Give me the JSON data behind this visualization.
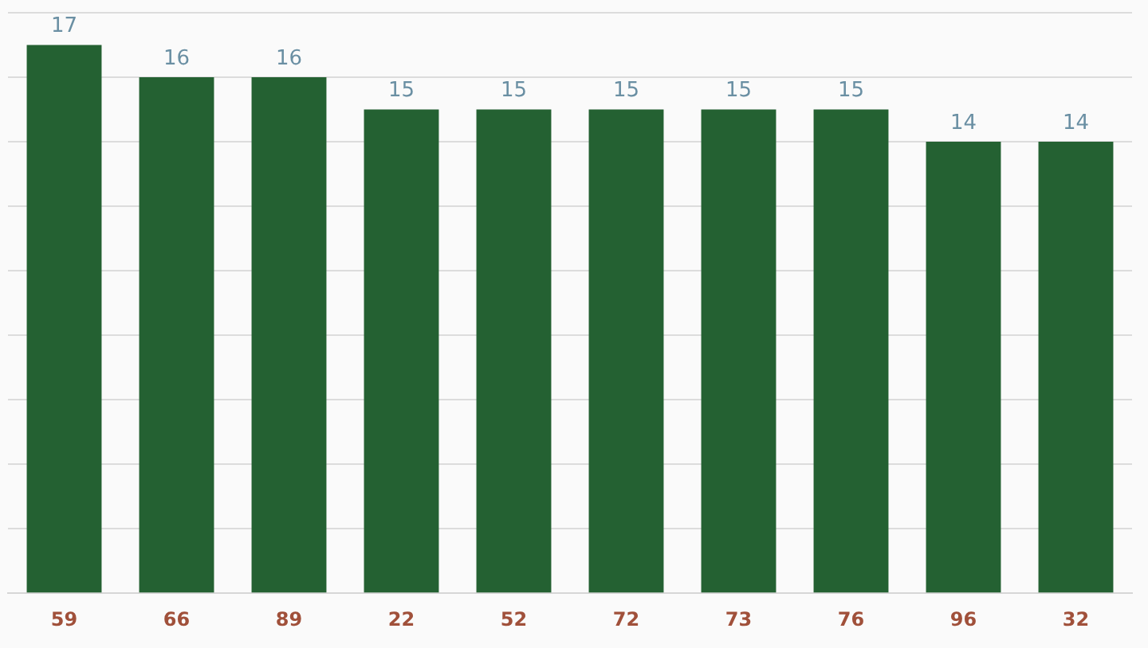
{
  "chart_data": {
    "type": "bar",
    "categories": [
      "59",
      "66",
      "89",
      "22",
      "52",
      "72",
      "73",
      "76",
      "96",
      "32"
    ],
    "values": [
      17,
      16,
      16,
      15,
      15,
      15,
      15,
      15,
      14,
      14
    ],
    "color": "#246132",
    "ylim": [
      0,
      18
    ],
    "yticks": [
      {
        "value": 0,
        "label": null
      },
      {
        "value": 2,
        "label": null
      },
      {
        "value": 4,
        "label": null
      },
      {
        "value": 6,
        "label": null
      },
      {
        "value": 8,
        "label": null
      },
      {
        "value": 10,
        "label": null
      },
      {
        "value": 12,
        "label": null
      },
      {
        "value": 14,
        "label": null
      },
      {
        "value": 16,
        "label": null
      },
      {
        "value": 18,
        "label": null
      }
    ],
    "grid": "y",
    "tick_labels": "x",
    "data_labels": true,
    "legend": false
  }
}
